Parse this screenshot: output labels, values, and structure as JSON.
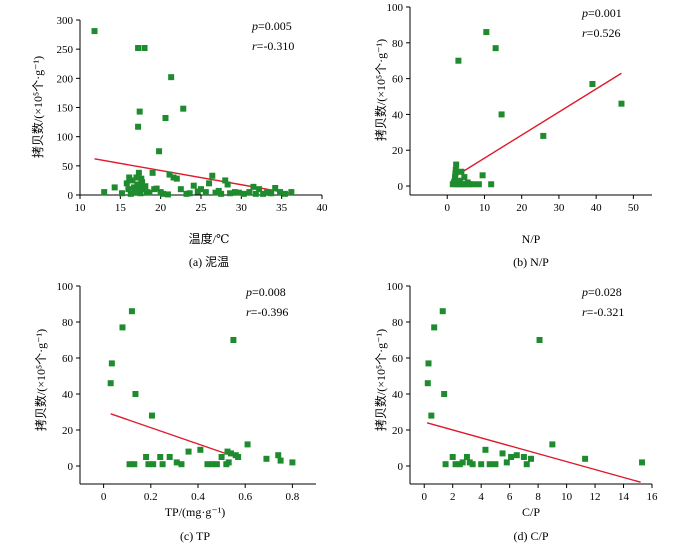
{
  "chart_data": [
    {
      "id": "a",
      "type": "scatter",
      "caption": "(a) 泥温",
      "xlabel": "温度/℃",
      "ylabel": "拷贝数/(×10⁵个·g⁻¹)",
      "xlim": [
        10,
        40
      ],
      "ylim": [
        0,
        300
      ],
      "xticks": [
        10,
        15,
        20,
        25,
        30,
        35,
        40
      ],
      "yticks": [
        0,
        50,
        100,
        150,
        200,
        250,
        300
      ],
      "stats": [
        "p=0.005",
        "r=-0.310"
      ],
      "points": [
        [
          11.8,
          281
        ],
        [
          13.0,
          5
        ],
        [
          14.3,
          13
        ],
        [
          15.2,
          3
        ],
        [
          15.8,
          20
        ],
        [
          16.0,
          10
        ],
        [
          16.1,
          30
        ],
        [
          16.3,
          2
        ],
        [
          16.5,
          25
        ],
        [
          16.7,
          13
        ],
        [
          16.8,
          8
        ],
        [
          17.0,
          30
        ],
        [
          17.0,
          5
        ],
        [
          17.1,
          18
        ],
        [
          17.2,
          117
        ],
        [
          17.2,
          252
        ],
        [
          17.3,
          38
        ],
        [
          17.4,
          143
        ],
        [
          17.4,
          12
        ],
        [
          17.5,
          3
        ],
        [
          17.6,
          28
        ],
        [
          17.7,
          22
        ],
        [
          17.8,
          10
        ],
        [
          18.0,
          252
        ],
        [
          18.1,
          15
        ],
        [
          18.3,
          5
        ],
        [
          18.6,
          4
        ],
        [
          19.0,
          38
        ],
        [
          19.2,
          10
        ],
        [
          19.5,
          11
        ],
        [
          19.8,
          75
        ],
        [
          20.0,
          5
        ],
        [
          20.3,
          2
        ],
        [
          20.6,
          132
        ],
        [
          20.9,
          1
        ],
        [
          21.1,
          35
        ],
        [
          21.3,
          202
        ],
        [
          21.6,
          30
        ],
        [
          22.0,
          28
        ],
        [
          22.5,
          10
        ],
        [
          22.8,
          148
        ],
        [
          23.2,
          2
        ],
        [
          23.6,
          3
        ],
        [
          24.1,
          16
        ],
        [
          24.6,
          6
        ],
        [
          25.0,
          10
        ],
        [
          25.6,
          5
        ],
        [
          26.0,
          20
        ],
        [
          26.4,
          33
        ],
        [
          26.8,
          4
        ],
        [
          27.2,
          7
        ],
        [
          27.5,
          2
        ],
        [
          28.0,
          25
        ],
        [
          28.3,
          18
        ],
        [
          28.6,
          3
        ],
        [
          29.2,
          5
        ],
        [
          29.7,
          4
        ],
        [
          30.3,
          2
        ],
        [
          31.0,
          5
        ],
        [
          31.5,
          14
        ],
        [
          31.8,
          2
        ],
        [
          32.2,
          10
        ],
        [
          32.7,
          2
        ],
        [
          33.2,
          5
        ],
        [
          33.7,
          3
        ],
        [
          34.2,
          12
        ],
        [
          34.8,
          5
        ],
        [
          35.4,
          2
        ],
        [
          36.2,
          5
        ]
      ],
      "fit": [
        [
          11.8,
          62
        ],
        [
          36.0,
          3
        ]
      ]
    },
    {
      "id": "b",
      "type": "scatter",
      "caption": "(b) N/P",
      "xlabel": "N/P",
      "ylabel": "拷贝数/(×10⁵个·g⁻¹)",
      "xlim": [
        -10,
        55
      ],
      "ylim": [
        -5,
        100
      ],
      "xticks": [
        0,
        10,
        20,
        30,
        40,
        50
      ],
      "yticks": [
        0,
        20,
        40,
        60,
        80,
        100
      ],
      "stats": [
        "p=0.001",
        "r=0.526"
      ],
      "points": [
        [
          1.5,
          1
        ],
        [
          1.8,
          2
        ],
        [
          2.0,
          3
        ],
        [
          2.1,
          5
        ],
        [
          2.2,
          7
        ],
        [
          2.3,
          9
        ],
        [
          2.4,
          12
        ],
        [
          2.6,
          1
        ],
        [
          2.8,
          2
        ],
        [
          3.0,
          70
        ],
        [
          3.2,
          1
        ],
        [
          3.5,
          3
        ],
        [
          3.8,
          8
        ],
        [
          4.2,
          1
        ],
        [
          4.6,
          5
        ],
        [
          5.0,
          1
        ],
        [
          5.5,
          2
        ],
        [
          6.0,
          1
        ],
        [
          7.0,
          1
        ],
        [
          8.5,
          1
        ],
        [
          9.5,
          6
        ],
        [
          10.5,
          86
        ],
        [
          11.8,
          1
        ],
        [
          13.0,
          77
        ],
        [
          14.6,
          40
        ],
        [
          25.8,
          28
        ],
        [
          39.0,
          57
        ],
        [
          46.8,
          46
        ]
      ],
      "fit": [
        [
          1.8,
          5
        ],
        [
          46.8,
          63
        ]
      ]
    },
    {
      "id": "c",
      "type": "scatter",
      "caption": "(c) TP",
      "xlabel": "TP/(mg·g⁻¹)",
      "ylabel": "拷贝数/(×10⁵个·g⁻¹)",
      "xlim": [
        -0.1,
        0.9
      ],
      "ylim": [
        -10,
        100
      ],
      "xticks": [
        0,
        0.2,
        0.4,
        0.6,
        0.8
      ],
      "yticks": [
        0,
        20,
        40,
        60,
        80,
        100
      ],
      "stats": [
        "p=0.008",
        "r=-0.396"
      ],
      "points": [
        [
          0.03,
          46
        ],
        [
          0.035,
          57
        ],
        [
          0.08,
          77
        ],
        [
          0.11,
          1
        ],
        [
          0.12,
          86
        ],
        [
          0.13,
          1
        ],
        [
          0.135,
          40
        ],
        [
          0.18,
          5
        ],
        [
          0.19,
          1
        ],
        [
          0.205,
          28
        ],
        [
          0.21,
          1
        ],
        [
          0.24,
          5
        ],
        [
          0.25,
          1
        ],
        [
          0.28,
          5
        ],
        [
          0.31,
          2
        ],
        [
          0.33,
          1
        ],
        [
          0.36,
          8
        ],
        [
          0.41,
          9
        ],
        [
          0.44,
          1
        ],
        [
          0.46,
          1
        ],
        [
          0.48,
          1
        ],
        [
          0.5,
          5
        ],
        [
          0.52,
          1
        ],
        [
          0.525,
          8
        ],
        [
          0.53,
          2
        ],
        [
          0.54,
          7
        ],
        [
          0.55,
          70
        ],
        [
          0.56,
          6
        ],
        [
          0.57,
          5
        ],
        [
          0.61,
          12
        ],
        [
          0.69,
          4
        ],
        [
          0.74,
          6
        ],
        [
          0.75,
          3
        ],
        [
          0.8,
          2
        ]
      ],
      "fit": [
        [
          0.03,
          29
        ],
        [
          0.56,
          5
        ]
      ]
    },
    {
      "id": "d",
      "type": "scatter",
      "caption": "(d) C/P",
      "xlabel": "C/P",
      "ylabel": "拷贝数/(×10⁵个·g⁻¹)",
      "xlim": [
        -1,
        16
      ],
      "ylim": [
        -10,
        100
      ],
      "xticks": [
        0,
        2,
        4,
        6,
        8,
        10,
        12,
        14,
        16
      ],
      "yticks": [
        0,
        20,
        40,
        60,
        80,
        100
      ],
      "stats": [
        "p=0.028",
        "r=-0.321"
      ],
      "points": [
        [
          0.25,
          46
        ],
        [
          0.3,
          57
        ],
        [
          0.5,
          28
        ],
        [
          0.7,
          77
        ],
        [
          1.3,
          86
        ],
        [
          1.4,
          40
        ],
        [
          1.5,
          1
        ],
        [
          2.0,
          5
        ],
        [
          2.2,
          1
        ],
        [
          2.5,
          1
        ],
        [
          2.7,
          2
        ],
        [
          3.0,
          5
        ],
        [
          3.2,
          2
        ],
        [
          3.4,
          1
        ],
        [
          4.0,
          1
        ],
        [
          4.3,
          9
        ],
        [
          4.6,
          1
        ],
        [
          5.0,
          1
        ],
        [
          5.5,
          7
        ],
        [
          5.8,
          2
        ],
        [
          6.1,
          5
        ],
        [
          6.5,
          6
        ],
        [
          7.0,
          5
        ],
        [
          7.2,
          1
        ],
        [
          7.5,
          4
        ],
        [
          8.1,
          70
        ],
        [
          9.0,
          12
        ],
        [
          11.3,
          4
        ],
        [
          15.3,
          2
        ]
      ],
      "fit": [
        [
          0.2,
          24
        ],
        [
          15.2,
          -9
        ]
      ]
    }
  ],
  "colors": {
    "marker": "#1e8c2e",
    "fit": "#e0192c",
    "axis": "#000000"
  }
}
